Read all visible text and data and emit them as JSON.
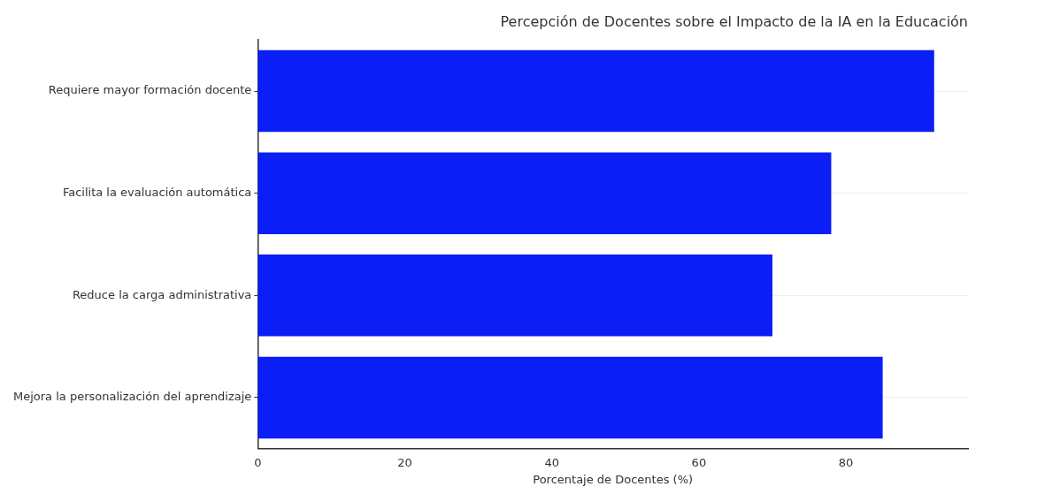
{
  "chart_data": {
    "type": "bar",
    "orientation": "horizontal",
    "title": "Percepción de Docentes sobre el Impacto de la IA en la Educación",
    "xlabel": "Porcentaje de Docentes (%)",
    "categories": [
      "Requiere mayor formación docente",
      "Facilita la evaluación automática",
      "Reduce la carga administrativa",
      "Mejora la personalización del aprendizaje"
    ],
    "values": [
      92,
      78,
      70,
      85
    ],
    "color": "#0a1ef5",
    "xlim": [
      0,
      96.6
    ],
    "xticks": [
      0,
      20,
      40,
      60,
      80
    ],
    "grid": "y"
  }
}
